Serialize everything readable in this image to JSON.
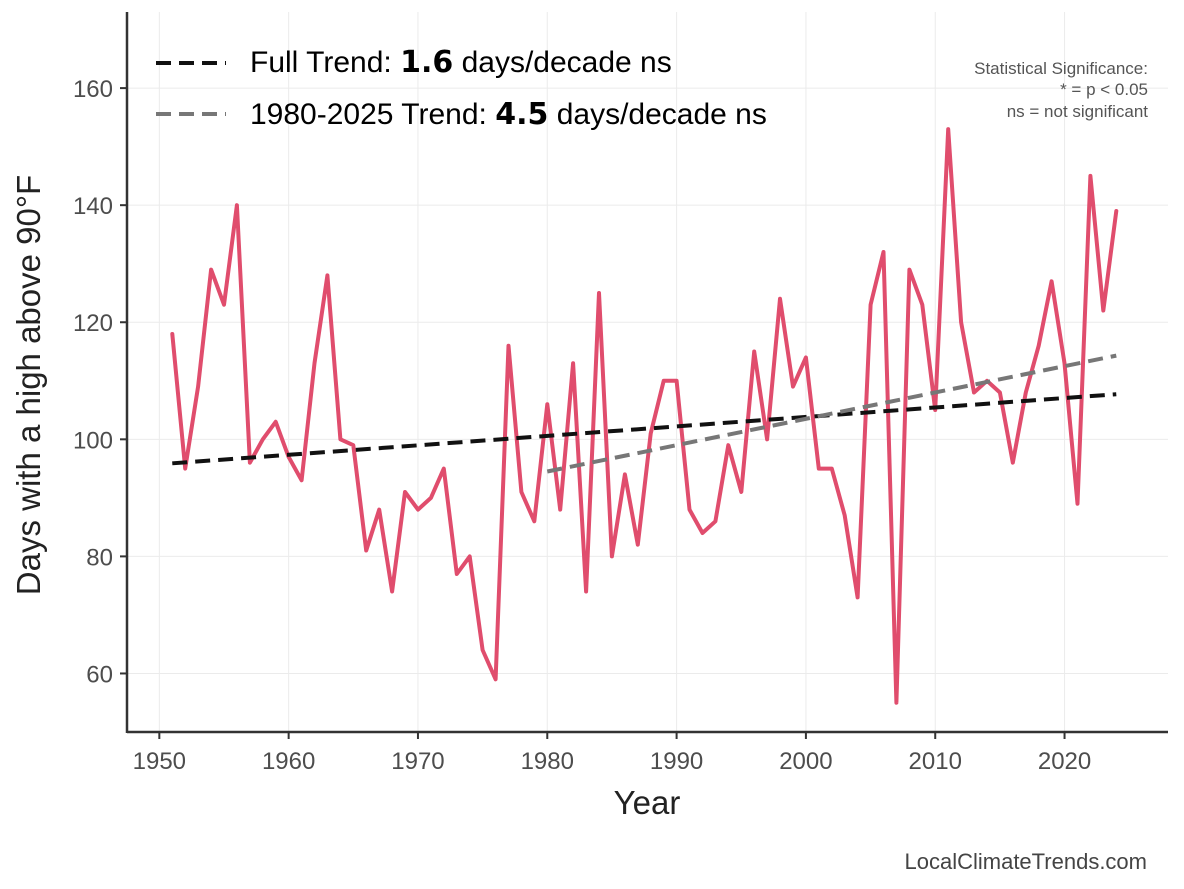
{
  "chart_data": {
    "type": "line",
    "xlabel": "Year",
    "ylabel": "Days with a high above 90°F",
    "xlim": [
      1947.5,
      2028
    ],
    "ylim": [
      50,
      173
    ],
    "x_ticks": [
      1950,
      1960,
      1970,
      1980,
      1990,
      2000,
      2010,
      2020
    ],
    "y_ticks": [
      60,
      80,
      100,
      120,
      140,
      160
    ],
    "grid": true,
    "legend_position": "top-left",
    "series": [
      {
        "color": "#e04d6d",
        "x": [
          1951,
          1952,
          1953,
          1954,
          1955,
          1956,
          1957,
          1958,
          1959,
          1960,
          1961,
          1962,
          1963,
          1964,
          1965,
          1966,
          1967,
          1968,
          1969,
          1970,
          1971,
          1972,
          1973,
          1974,
          1975,
          1976,
          1977,
          1978,
          1979,
          1980,
          1981,
          1982,
          1983,
          1984,
          1985,
          1986,
          1987,
          1988,
          1989,
          1990,
          1991,
          1992,
          1993,
          1994,
          1995,
          1996,
          1997,
          1998,
          1999,
          2000,
          2001,
          2002,
          2003,
          2004,
          2005,
          2006,
          2007,
          2008,
          2009,
          2010,
          2011,
          2012,
          2013,
          2014,
          2015,
          2016,
          2017,
          2018,
          2019,
          2020,
          2021,
          2022,
          2023,
          2024
        ],
        "values": [
          118,
          95,
          109,
          129,
          123,
          140,
          96,
          100,
          103,
          97,
          93,
          113,
          128,
          100,
          99,
          81,
          88,
          74,
          91,
          88,
          90,
          95,
          77,
          80,
          64,
          59,
          116,
          91,
          86,
          106,
          88,
          113,
          74,
          125,
          80,
          94,
          82,
          101,
          110,
          110,
          88,
          84,
          86,
          99,
          91,
          115,
          100,
          124,
          109,
          114,
          95,
          95,
          87,
          73,
          123,
          132,
          55,
          129,
          123,
          105,
          153,
          120,
          108,
          110,
          108,
          96,
          108,
          116,
          127,
          113,
          89,
          145,
          122,
          139
        ]
      }
    ],
    "trend_lines": [
      {
        "label": "Full Trend:",
        "value": "1.6",
        "unit": "days/decade ns",
        "color": "#111111",
        "x": [
          1951,
          2024
        ],
        "y": [
          95.9,
          107.7
        ]
      },
      {
        "label": "1980-2025 Trend:",
        "value": "4.5",
        "unit": "days/decade ns",
        "color": "#777777",
        "x": [
          1980,
          2024
        ],
        "y": [
          94.5,
          114.3
        ]
      }
    ],
    "annotation": {
      "title": "Statistical Significance:",
      "line1": "* = p < 0.05",
      "line2": "ns = not significant"
    },
    "credit": "LocalClimateTrends.com"
  }
}
